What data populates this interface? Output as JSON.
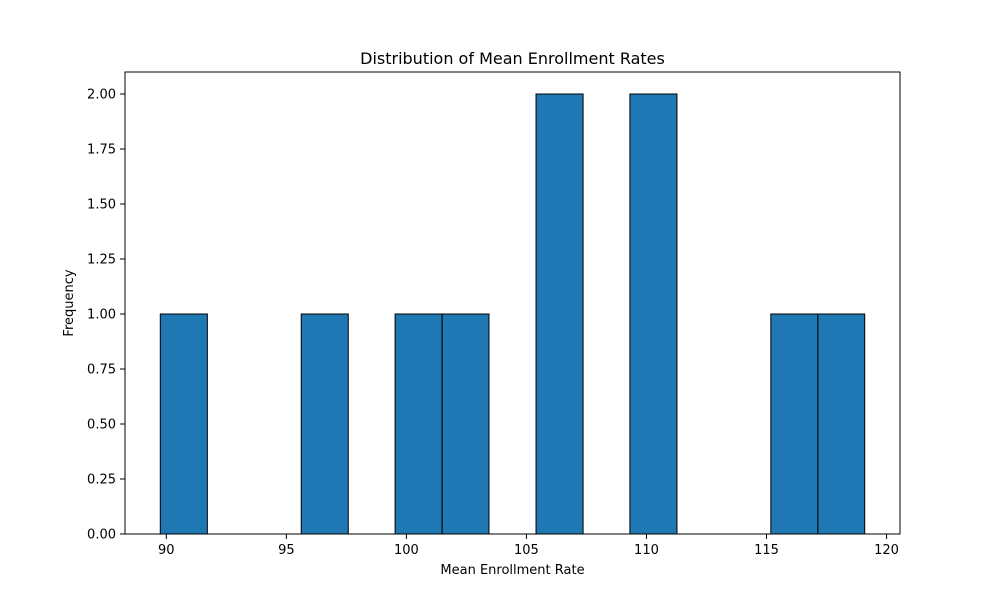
{
  "chart_data": {
    "type": "bar",
    "subtype": "histogram",
    "title": "Distribution of Mean Enrollment Rates",
    "xlabel": "Mean Enrollment Rate",
    "ylabel": "Frequency",
    "bins": [
      {
        "x0": 89.75,
        "x1": 91.71,
        "count": 1
      },
      {
        "x0": 91.71,
        "x1": 93.66,
        "count": 0
      },
      {
        "x0": 93.66,
        "x1": 95.62,
        "count": 0
      },
      {
        "x0": 95.62,
        "x1": 97.58,
        "count": 1
      },
      {
        "x0": 97.58,
        "x1": 99.53,
        "count": 0
      },
      {
        "x0": 99.53,
        "x1": 101.49,
        "count": 1
      },
      {
        "x0": 101.49,
        "x1": 103.44,
        "count": 1
      },
      {
        "x0": 103.44,
        "x1": 105.4,
        "count": 0
      },
      {
        "x0": 105.4,
        "x1": 107.36,
        "count": 2
      },
      {
        "x0": 107.36,
        "x1": 109.31,
        "count": 0
      },
      {
        "x0": 109.31,
        "x1": 111.27,
        "count": 2
      },
      {
        "x0": 111.27,
        "x1": 113.22,
        "count": 0
      },
      {
        "x0": 113.22,
        "x1": 115.18,
        "count": 0
      },
      {
        "x0": 115.18,
        "x1": 117.14,
        "count": 1
      },
      {
        "x0": 117.14,
        "x1": 119.09,
        "count": 1
      }
    ],
    "xlim": [
      88.28,
      120.56
    ],
    "ylim": [
      0,
      2.1
    ],
    "xticks": [
      90,
      95,
      100,
      105,
      110,
      115,
      120
    ],
    "xtick_labels": [
      "90",
      "95",
      "100",
      "105",
      "110",
      "115",
      "120"
    ],
    "yticks": [
      0,
      0.25,
      0.5,
      0.75,
      1.0,
      1.25,
      1.5,
      1.75,
      2.0
    ],
    "ytick_labels": [
      "0.00",
      "0.25",
      "0.50",
      "0.75",
      "1.00",
      "1.25",
      "1.50",
      "1.75",
      "2.00"
    ],
    "grid": false,
    "legend": "none",
    "colors": {
      "bar_fill": "#1f77b4",
      "bar_edge": "#000000",
      "axis": "#000000",
      "background": "#ffffff"
    }
  }
}
